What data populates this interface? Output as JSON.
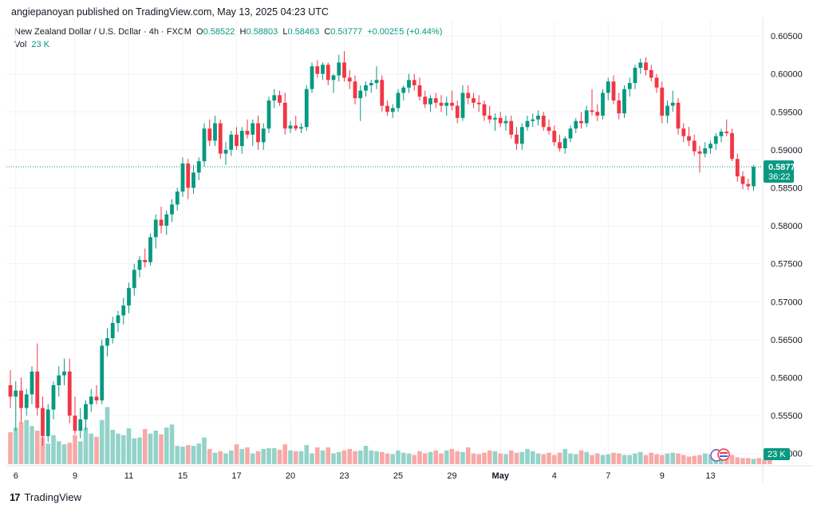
{
  "header": {
    "publisher": "angiepanoyan",
    "published_text": "published on TradingView.com, May 13, 2025 04:23 UTC"
  },
  "symbol": {
    "name": "New Zealand Dollar / U.S. Dollar · 4h · FXCM",
    "open_label": "O",
    "open": "0.58522",
    "high_label": "H",
    "high": "0.58803",
    "low_label": "L",
    "low": "0.58463",
    "close_label": "C",
    "close": "0.58777",
    "change": "+0.00255 (+0.44%)"
  },
  "volume": {
    "label": "Vol",
    "value": "23 K"
  },
  "last_price": {
    "value": "0.58777",
    "countdown": "36:22"
  },
  "volume_tag": "23 K",
  "footer": {
    "logo": "17",
    "brand": "TradingView"
  },
  "colors": {
    "up": "#089981",
    "down": "#f23645",
    "up_vol": "#93d3c9",
    "down_vol": "#f7a9a7",
    "grid": "#f0f3fa"
  },
  "chart_data": {
    "type": "candlestick",
    "timeframe": "4h",
    "y_ticks": [
      0.55,
      0.555,
      0.56,
      0.565,
      0.57,
      0.575,
      0.58,
      0.585,
      0.59,
      0.595,
      0.6,
      0.605
    ],
    "y_tick_labels": [
      "0.55000",
      "0.55500",
      "0.56000",
      "0.56500",
      "0.57000",
      "0.57500",
      "0.58000",
      "0.58500",
      "0.59000",
      "0.59500",
      "0.60000",
      "0.60500"
    ],
    "ylim": [
      0.5485,
      0.607
    ],
    "x_labels": [
      "6",
      "9",
      "11",
      "15",
      "17",
      "20",
      "23",
      "25",
      "29",
      "May",
      "4",
      "7",
      "9",
      "13"
    ],
    "x_label_bars": [
      1,
      12,
      22,
      32,
      42,
      52,
      62,
      72,
      82,
      91,
      101,
      111,
      121,
      130
    ],
    "candles": [
      {
        "o": 0.559,
        "h": 0.561,
        "l": 0.556,
        "c": 0.5575
      },
      {
        "o": 0.5575,
        "h": 0.5595,
        "l": 0.553,
        "c": 0.5583
      },
      {
        "o": 0.5583,
        "h": 0.56,
        "l": 0.554,
        "c": 0.556
      },
      {
        "o": 0.556,
        "h": 0.5585,
        "l": 0.555,
        "c": 0.5578
      },
      {
        "o": 0.5578,
        "h": 0.5615,
        "l": 0.5565,
        "c": 0.5608
      },
      {
        "o": 0.5608,
        "h": 0.5645,
        "l": 0.555,
        "c": 0.556
      },
      {
        "o": 0.556,
        "h": 0.5575,
        "l": 0.551,
        "c": 0.5523
      },
      {
        "o": 0.5523,
        "h": 0.5565,
        "l": 0.5515,
        "c": 0.5558
      },
      {
        "o": 0.5558,
        "h": 0.5595,
        "l": 0.5545,
        "c": 0.559
      },
      {
        "o": 0.559,
        "h": 0.5615,
        "l": 0.5575,
        "c": 0.5603
      },
      {
        "o": 0.5603,
        "h": 0.5625,
        "l": 0.559,
        "c": 0.5608
      },
      {
        "o": 0.5608,
        "h": 0.5625,
        "l": 0.554,
        "c": 0.555
      },
      {
        "o": 0.555,
        "h": 0.5575,
        "l": 0.5525,
        "c": 0.553
      },
      {
        "o": 0.553,
        "h": 0.556,
        "l": 0.552,
        "c": 0.5545
      },
      {
        "o": 0.5545,
        "h": 0.557,
        "l": 0.553,
        "c": 0.5565
      },
      {
        "o": 0.5565,
        "h": 0.5585,
        "l": 0.5555,
        "c": 0.5575
      },
      {
        "o": 0.5575,
        "h": 0.559,
        "l": 0.5565,
        "c": 0.557
      },
      {
        "o": 0.557,
        "h": 0.565,
        "l": 0.5565,
        "c": 0.5642
      },
      {
        "o": 0.5642,
        "h": 0.5665,
        "l": 0.5628,
        "c": 0.5652
      },
      {
        "o": 0.5652,
        "h": 0.568,
        "l": 0.5645,
        "c": 0.5672
      },
      {
        "o": 0.5672,
        "h": 0.5688,
        "l": 0.566,
        "c": 0.5682
      },
      {
        "o": 0.5682,
        "h": 0.5705,
        "l": 0.567,
        "c": 0.5695
      },
      {
        "o": 0.5695,
        "h": 0.5725,
        "l": 0.5685,
        "c": 0.5718
      },
      {
        "o": 0.5718,
        "h": 0.575,
        "l": 0.5708,
        "c": 0.5742
      },
      {
        "o": 0.5742,
        "h": 0.576,
        "l": 0.5732,
        "c": 0.5755
      },
      {
        "o": 0.5755,
        "h": 0.577,
        "l": 0.5745,
        "c": 0.5752
      },
      {
        "o": 0.5752,
        "h": 0.579,
        "l": 0.5748,
        "c": 0.5785
      },
      {
        "o": 0.5785,
        "h": 0.5815,
        "l": 0.577,
        "c": 0.5808
      },
      {
        "o": 0.5808,
        "h": 0.5825,
        "l": 0.579,
        "c": 0.58
      },
      {
        "o": 0.58,
        "h": 0.582,
        "l": 0.5788,
        "c": 0.5815
      },
      {
        "o": 0.5815,
        "h": 0.5835,
        "l": 0.5805,
        "c": 0.5828
      },
      {
        "o": 0.5828,
        "h": 0.585,
        "l": 0.582,
        "c": 0.5845
      },
      {
        "o": 0.5845,
        "h": 0.589,
        "l": 0.5838,
        "c": 0.5882
      },
      {
        "o": 0.5882,
        "h": 0.5888,
        "l": 0.5835,
        "c": 0.585
      },
      {
        "o": 0.585,
        "h": 0.588,
        "l": 0.5842,
        "c": 0.587
      },
      {
        "o": 0.587,
        "h": 0.589,
        "l": 0.586,
        "c": 0.5885
      },
      {
        "o": 0.5885,
        "h": 0.5935,
        "l": 0.5878,
        "c": 0.5928
      },
      {
        "o": 0.5928,
        "h": 0.594,
        "l": 0.5905,
        "c": 0.5912
      },
      {
        "o": 0.5912,
        "h": 0.5945,
        "l": 0.5905,
        "c": 0.5935
      },
      {
        "o": 0.5935,
        "h": 0.594,
        "l": 0.5888,
        "c": 0.5895
      },
      {
        "o": 0.5895,
        "h": 0.591,
        "l": 0.588,
        "c": 0.59
      },
      {
        "o": 0.59,
        "h": 0.5925,
        "l": 0.5892,
        "c": 0.592
      },
      {
        "o": 0.592,
        "h": 0.593,
        "l": 0.59,
        "c": 0.5905
      },
      {
        "o": 0.5905,
        "h": 0.593,
        "l": 0.5895,
        "c": 0.5925
      },
      {
        "o": 0.5925,
        "h": 0.594,
        "l": 0.5915,
        "c": 0.592
      },
      {
        "o": 0.592,
        "h": 0.594,
        "l": 0.5905,
        "c": 0.5935
      },
      {
        "o": 0.5935,
        "h": 0.5945,
        "l": 0.59,
        "c": 0.591
      },
      {
        "o": 0.591,
        "h": 0.5935,
        "l": 0.59,
        "c": 0.5928
      },
      {
        "o": 0.5928,
        "h": 0.597,
        "l": 0.5922,
        "c": 0.5965
      },
      {
        "o": 0.5965,
        "h": 0.598,
        "l": 0.5955,
        "c": 0.5972
      },
      {
        "o": 0.5972,
        "h": 0.5978,
        "l": 0.5958,
        "c": 0.5962
      },
      {
        "o": 0.5962,
        "h": 0.5975,
        "l": 0.592,
        "c": 0.5928
      },
      {
        "o": 0.5928,
        "h": 0.5938,
        "l": 0.5922,
        "c": 0.5932
      },
      {
        "o": 0.5932,
        "h": 0.5945,
        "l": 0.5925,
        "c": 0.5928
      },
      {
        "o": 0.5928,
        "h": 0.5935,
        "l": 0.5922,
        "c": 0.593
      },
      {
        "o": 0.593,
        "h": 0.5985,
        "l": 0.5925,
        "c": 0.598
      },
      {
        "o": 0.598,
        "h": 0.6015,
        "l": 0.5975,
        "c": 0.601
      },
      {
        "o": 0.601,
        "h": 0.6018,
        "l": 0.5995,
        "c": 0.6
      },
      {
        "o": 0.6,
        "h": 0.6015,
        "l": 0.5992,
        "c": 0.6012
      },
      {
        "o": 0.6012,
        "h": 0.6015,
        "l": 0.5985,
        "c": 0.5992
      },
      {
        "o": 0.5992,
        "h": 0.6,
        "l": 0.5975,
        "c": 0.5998
      },
      {
        "o": 0.5998,
        "h": 0.6025,
        "l": 0.599,
        "c": 0.6015
      },
      {
        "o": 0.6015,
        "h": 0.603,
        "l": 0.599,
        "c": 0.5995
      },
      {
        "o": 0.5995,
        "h": 0.6005,
        "l": 0.598,
        "c": 0.599
      },
      {
        "o": 0.599,
        "h": 0.5998,
        "l": 0.596,
        "c": 0.5968
      },
      {
        "o": 0.5968,
        "h": 0.5985,
        "l": 0.5938,
        "c": 0.5978
      },
      {
        "o": 0.5978,
        "h": 0.599,
        "l": 0.597,
        "c": 0.5985
      },
      {
        "o": 0.5985,
        "h": 0.5992,
        "l": 0.5975,
        "c": 0.5988
      },
      {
        "o": 0.5988,
        "h": 0.601,
        "l": 0.598,
        "c": 0.5992
      },
      {
        "o": 0.5992,
        "h": 0.5998,
        "l": 0.595,
        "c": 0.5958
      },
      {
        "o": 0.5958,
        "h": 0.5965,
        "l": 0.5945,
        "c": 0.595
      },
      {
        "o": 0.595,
        "h": 0.596,
        "l": 0.5942,
        "c": 0.5955
      },
      {
        "o": 0.5955,
        "h": 0.598,
        "l": 0.595,
        "c": 0.5975
      },
      {
        "o": 0.5975,
        "h": 0.5985,
        "l": 0.5965,
        "c": 0.5982
      },
      {
        "o": 0.5982,
        "h": 0.6,
        "l": 0.5975,
        "c": 0.5992
      },
      {
        "o": 0.5992,
        "h": 0.6,
        "l": 0.5978,
        "c": 0.5985
      },
      {
        "o": 0.5985,
        "h": 0.5995,
        "l": 0.5965,
        "c": 0.597
      },
      {
        "o": 0.597,
        "h": 0.5978,
        "l": 0.5955,
        "c": 0.596
      },
      {
        "o": 0.596,
        "h": 0.5972,
        "l": 0.595,
        "c": 0.5968
      },
      {
        "o": 0.5968,
        "h": 0.5975,
        "l": 0.5955,
        "c": 0.5962
      },
      {
        "o": 0.5962,
        "h": 0.5972,
        "l": 0.595,
        "c": 0.5958
      },
      {
        "o": 0.5958,
        "h": 0.597,
        "l": 0.5945,
        "c": 0.5962
      },
      {
        "o": 0.5962,
        "h": 0.5978,
        "l": 0.5952,
        "c": 0.5958
      },
      {
        "o": 0.5958,
        "h": 0.5965,
        "l": 0.5935,
        "c": 0.5942
      },
      {
        "o": 0.5942,
        "h": 0.5985,
        "l": 0.5938,
        "c": 0.5975
      },
      {
        "o": 0.5975,
        "h": 0.5985,
        "l": 0.596,
        "c": 0.5968
      },
      {
        "o": 0.5968,
        "h": 0.5975,
        "l": 0.5955,
        "c": 0.5962
      },
      {
        "o": 0.5962,
        "h": 0.5972,
        "l": 0.595,
        "c": 0.596
      },
      {
        "o": 0.596,
        "h": 0.5965,
        "l": 0.5938,
        "c": 0.5945
      },
      {
        "o": 0.5945,
        "h": 0.5958,
        "l": 0.5935,
        "c": 0.594
      },
      {
        "o": 0.594,
        "h": 0.5948,
        "l": 0.5925,
        "c": 0.5942
      },
      {
        "o": 0.5942,
        "h": 0.595,
        "l": 0.593,
        "c": 0.5935
      },
      {
        "o": 0.5935,
        "h": 0.5945,
        "l": 0.5925,
        "c": 0.5938
      },
      {
        "o": 0.5938,
        "h": 0.5945,
        "l": 0.5915,
        "c": 0.592
      },
      {
        "o": 0.592,
        "h": 0.593,
        "l": 0.59,
        "c": 0.5908
      },
      {
        "o": 0.5908,
        "h": 0.5935,
        "l": 0.59,
        "c": 0.593
      },
      {
        "o": 0.593,
        "h": 0.5945,
        "l": 0.5925,
        "c": 0.5938
      },
      {
        "o": 0.5938,
        "h": 0.5948,
        "l": 0.593,
        "c": 0.594
      },
      {
        "o": 0.594,
        "h": 0.5952,
        "l": 0.5932,
        "c": 0.5945
      },
      {
        "o": 0.5945,
        "h": 0.595,
        "l": 0.5925,
        "c": 0.593
      },
      {
        "o": 0.593,
        "h": 0.594,
        "l": 0.592,
        "c": 0.5925
      },
      {
        "o": 0.5925,
        "h": 0.5932,
        "l": 0.5905,
        "c": 0.591
      },
      {
        "o": 0.591,
        "h": 0.592,
        "l": 0.5898,
        "c": 0.5902
      },
      {
        "o": 0.5902,
        "h": 0.5918,
        "l": 0.5895,
        "c": 0.5915
      },
      {
        "o": 0.5915,
        "h": 0.5932,
        "l": 0.591,
        "c": 0.5928
      },
      {
        "o": 0.5928,
        "h": 0.5942,
        "l": 0.5922,
        "c": 0.5938
      },
      {
        "o": 0.5938,
        "h": 0.595,
        "l": 0.5928,
        "c": 0.5935
      },
      {
        "o": 0.5935,
        "h": 0.5958,
        "l": 0.593,
        "c": 0.5952
      },
      {
        "o": 0.5952,
        "h": 0.598,
        "l": 0.5945,
        "c": 0.595
      },
      {
        "o": 0.595,
        "h": 0.596,
        "l": 0.5938,
        "c": 0.5945
      },
      {
        "o": 0.5945,
        "h": 0.598,
        "l": 0.594,
        "c": 0.5975
      },
      {
        "o": 0.5975,
        "h": 0.5995,
        "l": 0.5965,
        "c": 0.599
      },
      {
        "o": 0.599,
        "h": 0.5998,
        "l": 0.596,
        "c": 0.5965
      },
      {
        "o": 0.5965,
        "h": 0.5975,
        "l": 0.594,
        "c": 0.5948
      },
      {
        "o": 0.5948,
        "h": 0.5985,
        "l": 0.5942,
        "c": 0.598
      },
      {
        "o": 0.598,
        "h": 0.5995,
        "l": 0.597,
        "c": 0.5988
      },
      {
        "o": 0.5988,
        "h": 0.6012,
        "l": 0.598,
        "c": 0.6008
      },
      {
        "o": 0.6008,
        "h": 0.602,
        "l": 0.6,
        "c": 0.6015
      },
      {
        "o": 0.6015,
        "h": 0.6022,
        "l": 0.5998,
        "c": 0.6005
      },
      {
        "o": 0.6005,
        "h": 0.6012,
        "l": 0.599,
        "c": 0.5995
      },
      {
        "o": 0.5995,
        "h": 0.6,
        "l": 0.5975,
        "c": 0.5982
      },
      {
        "o": 0.5982,
        "h": 0.599,
        "l": 0.5935,
        "c": 0.5945
      },
      {
        "o": 0.5945,
        "h": 0.5965,
        "l": 0.5935,
        "c": 0.5958
      },
      {
        "o": 0.5958,
        "h": 0.5978,
        "l": 0.595,
        "c": 0.5962
      },
      {
        "o": 0.5962,
        "h": 0.5968,
        "l": 0.592,
        "c": 0.5928
      },
      {
        "o": 0.5928,
        "h": 0.5935,
        "l": 0.591,
        "c": 0.5918
      },
      {
        "o": 0.5918,
        "h": 0.593,
        "l": 0.5905,
        "c": 0.5912
      },
      {
        "o": 0.5912,
        "h": 0.592,
        "l": 0.5892,
        "c": 0.5898
      },
      {
        "o": 0.5898,
        "h": 0.5905,
        "l": 0.587,
        "c": 0.5895
      },
      {
        "o": 0.5895,
        "h": 0.591,
        "l": 0.589,
        "c": 0.5902
      },
      {
        "o": 0.5902,
        "h": 0.5912,
        "l": 0.5895,
        "c": 0.5908
      },
      {
        "o": 0.5908,
        "h": 0.5922,
        "l": 0.59,
        "c": 0.5918
      },
      {
        "o": 0.5918,
        "h": 0.5928,
        "l": 0.591,
        "c": 0.5924
      },
      {
        "o": 0.5924,
        "h": 0.594,
        "l": 0.5918,
        "c": 0.5922
      },
      {
        "o": 0.5922,
        "h": 0.5928,
        "l": 0.5885,
        "c": 0.5888
      },
      {
        "o": 0.5888,
        "h": 0.5895,
        "l": 0.5858,
        "c": 0.5865
      },
      {
        "o": 0.5865,
        "h": 0.5872,
        "l": 0.5848,
        "c": 0.5855
      },
      {
        "o": 0.5855,
        "h": 0.5862,
        "l": 0.5847,
        "c": 0.5852
      },
      {
        "o": 0.5852,
        "h": 0.588,
        "l": 0.5846,
        "c": 0.58777
      }
    ],
    "volume": [
      42,
      48,
      55,
      58,
      50,
      44,
      35,
      27,
      38,
      30,
      26,
      28,
      38,
      30,
      48,
      40,
      36,
      58,
      75,
      45,
      40,
      38,
      47,
      34,
      35,
      46,
      40,
      44,
      39,
      48,
      52,
      24,
      23,
      25,
      24,
      27,
      35,
      20,
      15,
      17,
      14,
      18,
      26,
      20,
      22,
      14,
      17,
      20,
      21,
      21,
      19,
      26,
      18,
      17,
      17,
      25,
      14,
      22,
      18,
      22,
      14,
      16,
      18,
      20,
      17,
      18,
      24,
      18,
      17,
      16,
      14,
      13,
      18,
      15,
      14,
      12,
      17,
      14,
      16,
      18,
      14,
      18,
      20,
      17,
      16,
      22,
      14,
      13,
      15,
      18,
      17,
      14,
      13,
      18,
      15,
      16,
      20,
      17,
      14,
      13,
      15,
      12,
      15,
      20,
      14,
      13,
      18,
      16,
      12,
      14,
      12,
      13,
      15,
      14,
      12,
      12,
      14,
      16,
      12,
      15,
      13,
      12,
      14,
      15,
      14,
      12,
      10,
      11,
      12,
      14,
      13,
      20,
      14,
      10,
      12,
      9,
      8,
      8,
      7,
      8,
      6,
      10
    ],
    "volume_max": 90
  }
}
